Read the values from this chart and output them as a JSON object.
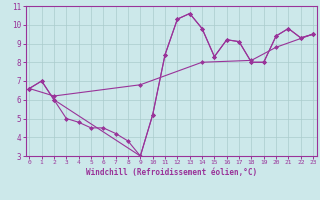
{
  "line1_x": [
    0,
    1,
    2,
    3,
    4,
    5,
    6,
    7,
    8,
    9,
    10,
    11,
    12,
    13,
    14,
    15,
    16,
    17,
    18,
    19,
    20,
    21,
    22,
    23
  ],
  "line1_y": [
    6.6,
    7.0,
    6.0,
    5.0,
    4.8,
    4.5,
    4.5,
    4.2,
    3.8,
    3.0,
    5.2,
    8.4,
    10.3,
    10.6,
    9.8,
    8.3,
    9.2,
    9.1,
    8.0,
    8.0,
    9.4,
    9.8,
    9.3,
    9.5
  ],
  "line2_x": [
    0,
    1,
    2,
    9,
    10,
    11,
    12,
    13,
    14,
    15,
    16,
    17,
    18,
    19,
    20,
    21,
    22,
    23
  ],
  "line2_y": [
    6.6,
    7.0,
    6.0,
    3.0,
    5.2,
    8.4,
    10.3,
    10.6,
    9.8,
    8.3,
    9.2,
    9.1,
    8.0,
    8.0,
    9.4,
    9.8,
    9.3,
    9.5
  ],
  "line3_x": [
    0,
    2,
    9,
    14,
    18,
    20,
    23
  ],
  "line3_y": [
    6.6,
    6.2,
    6.8,
    8.0,
    8.1,
    8.8,
    9.5
  ],
  "xlabel": "Windchill (Refroidissement éolien,°C)",
  "xlim": [
    -0.3,
    23.3
  ],
  "ylim": [
    3,
    11
  ],
  "yticks": [
    3,
    4,
    5,
    6,
    7,
    8,
    9,
    10,
    11
  ],
  "xticks": [
    0,
    1,
    2,
    3,
    4,
    5,
    6,
    7,
    8,
    9,
    10,
    11,
    12,
    13,
    14,
    15,
    16,
    17,
    18,
    19,
    20,
    21,
    22,
    23
  ],
  "line_color": "#993399",
  "bg_color": "#cce8ea",
  "grid_color": "#aacccc",
  "marker": "D",
  "markersize": 2.5,
  "linewidth": 0.8
}
